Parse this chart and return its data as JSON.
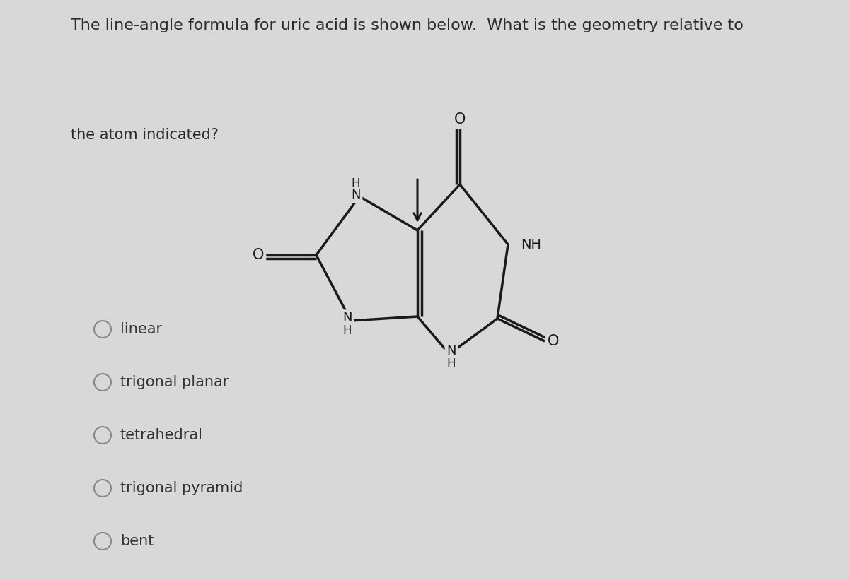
{
  "bg_color": "#d8d8d8",
  "title_line1": "The line-angle formula for uric acid is shown below.  What is the geometry relative to",
  "subtitle": "the atom indicated?",
  "title_fontsize": 16,
  "subtitle_fontsize": 15,
  "options": [
    "linear",
    "trigonal planar",
    "tetrahedral",
    "trigonal pyramid",
    "bent"
  ],
  "option_fontsize": 15,
  "mol_color": "#1a1a1a",
  "mol_linewidth": 2.5,
  "label_fontsize": 13,
  "mol_scale": 1.0
}
